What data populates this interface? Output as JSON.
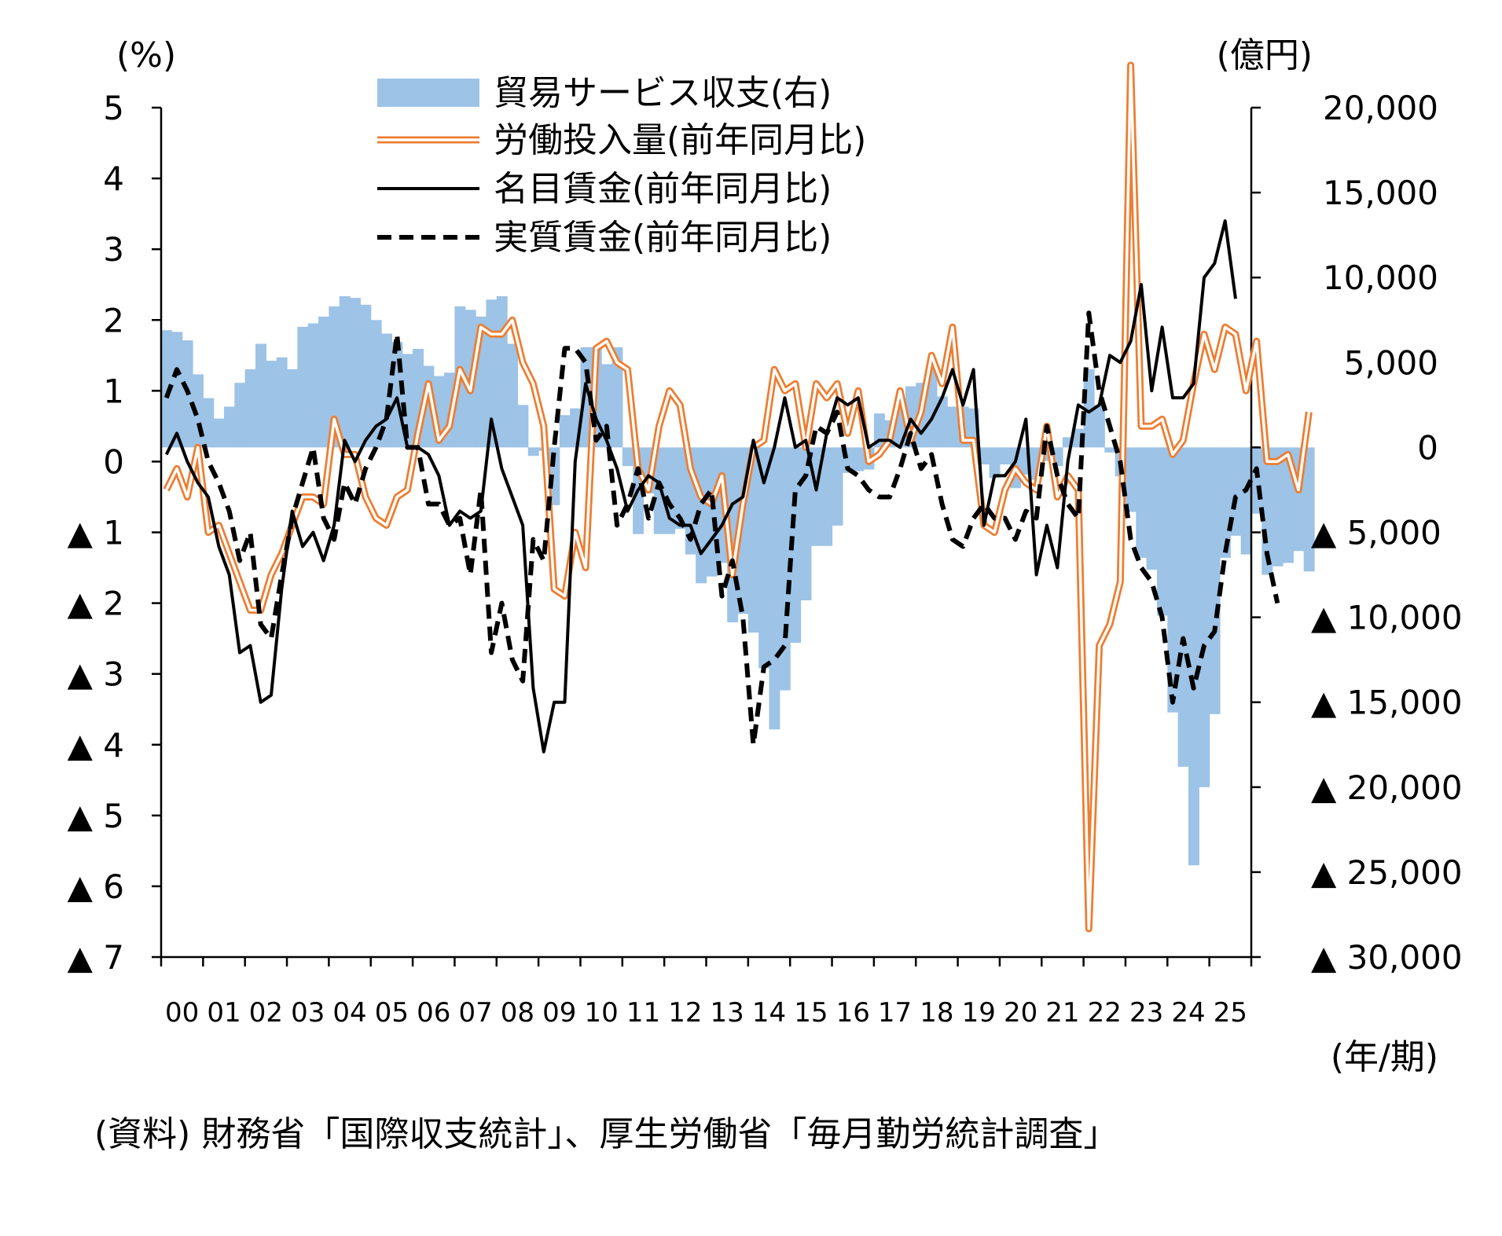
{
  "source_note": "(資料) 財務省「国際収支統計」、厚生労働省「毎月勤労統計調査」",
  "colors": {
    "bar": "#9DC3E6",
    "labor": "#ED7D31",
    "nominal": "#000000",
    "real": "#000000"
  },
  "chart_data": {
    "type": "bar+line",
    "title": "",
    "left_axis": {
      "label": "(%)",
      "ylim": [
        -7,
        5
      ],
      "ticks": [
        5,
        4,
        3,
        2,
        1,
        0,
        -1,
        -2,
        -3,
        -4,
        -5,
        -6,
        -7
      ],
      "tick_labels": [
        "5",
        "4",
        "3",
        "2",
        "1",
        "0",
        "▲ 1",
        "▲ 2",
        "▲ 3",
        "▲ 4",
        "▲ 5",
        "▲ 6",
        "▲ 7"
      ]
    },
    "right_axis": {
      "label": "(億円)",
      "ylim": [
        -30000,
        20000
      ],
      "ticks": [
        20000,
        15000,
        10000,
        5000,
        0,
        -5000,
        -10000,
        -15000,
        -20000,
        -25000,
        -30000
      ],
      "tick_labels": [
        "20,000",
        "15,000",
        "10,000",
        "5,000",
        "0",
        "▲ 5,000",
        "▲ 10,000",
        "▲ 15,000",
        "▲ 20,000",
        "▲ 25,000",
        "▲ 30,000"
      ]
    },
    "x_axis": {
      "label": "(年/期)",
      "unit": "quarter",
      "start": "2000Q1",
      "categories": [
        "00",
        "01",
        "02",
        "03",
        "04",
        "05",
        "06",
        "07",
        "08",
        "09",
        "10",
        "11",
        "12",
        "13",
        "14",
        "15",
        "16",
        "17",
        "18",
        "19",
        "20",
        "21",
        "22",
        "23",
        "24",
        "25"
      ]
    },
    "legend": {
      "position": "top-center",
      "entries": [
        "貿易サービス収支(右)",
        "労働投入量(前年同月比)",
        "名目賃金(前年同月比)",
        "実質賃金(前年同月比)"
      ]
    },
    "series": [
      {
        "name": "貿易サービス収支(右)",
        "type": "bar",
        "axis": "right",
        "values": [
          6900,
          6800,
          6300,
          4300,
          2900,
          1700,
          2400,
          3800,
          4600,
          6100,
          5100,
          5300,
          4600,
          7100,
          7300,
          7700,
          8300,
          8900,
          8800,
          8400,
          7500,
          6700,
          6200,
          5500,
          5800,
          4800,
          4200,
          4400,
          8300,
          8100,
          7700,
          8700,
          8900,
          6100,
          2500,
          -500,
          -200,
          -3400,
          1900,
          2300,
          5900,
          5900,
          4900,
          5900,
          -1100,
          -5100,
          -2700,
          -5100,
          -5100,
          -4800,
          -6300,
          -8000,
          -7600,
          -6800,
          -10300,
          -9800,
          -10900,
          -13000,
          -16600,
          -14300,
          -11500,
          -9000,
          -5800,
          -5800,
          -4600,
          -1500,
          -1400,
          -1300,
          2000,
          1600,
          2900,
          3600,
          3800,
          4600,
          3000,
          2400,
          2400,
          2300,
          -1000,
          -1800,
          -1000,
          -2400,
          -1600,
          -1900,
          -800,
          -1100,
          600,
          1100,
          4600,
          2500,
          -300,
          -1700,
          -3800,
          -6500,
          -7200,
          -9900,
          -15600,
          -18800,
          -24600,
          -20000,
          -15700,
          -6500,
          -5200,
          -6300,
          -3900,
          -7500,
          -7000,
          -6800,
          -6100,
          -7300
        ]
      },
      {
        "name": "労働投入量(前年同月比)",
        "type": "line",
        "style": "double",
        "axis": "left",
        "values": [
          -0.4,
          -0.1,
          -0.5,
          0.2,
          -1.0,
          -0.9,
          -1.3,
          -1.7,
          -2.1,
          -2.1,
          -1.6,
          -1.3,
          -0.9,
          -0.5,
          -0.5,
          -0.6,
          0.6,
          0.1,
          0.1,
          -0.5,
          -0.8,
          -0.9,
          -0.5,
          -0.4,
          0.4,
          1.1,
          0.3,
          0.5,
          1.3,
          1.0,
          1.9,
          1.8,
          1.8,
          2.0,
          1.4,
          1.1,
          0.5,
          -1.8,
          -1.9,
          -1.0,
          -1.5,
          1.6,
          1.7,
          1.4,
          1.3,
          -0.1,
          -0.4,
          0.5,
          1.0,
          0.8,
          -0.1,
          -0.5,
          -0.6,
          -0.2,
          -1.6,
          -0.6,
          0.2,
          0.3,
          1.3,
          1.0,
          1.1,
          0.2,
          1.1,
          0.9,
          1.1,
          0.4,
          1.0,
          0.0,
          0.1,
          0.3,
          1.0,
          0.3,
          0.7,
          1.5,
          1.1,
          1.9,
          0.3,
          0.3,
          -0.9,
          -1.0,
          -0.4,
          -0.1,
          -0.3,
          -0.4,
          0.5,
          -0.5,
          -0.2,
          -0.4,
          -6.6,
          -2.6,
          -2.3,
          -1.7,
          5.6,
          0.5,
          0.5,
          0.6,
          0.1,
          0.3,
          1.1,
          1.8,
          1.3,
          1.9,
          1.8,
          1.0,
          1.7,
          0.0,
          0.0,
          0.1,
          -0.4,
          0.7
        ]
      },
      {
        "name": "名目賃金(前年同月比)",
        "type": "line",
        "style": "solid",
        "axis": "left",
        "values": [
          0.1,
          0.4,
          0.0,
          -0.3,
          -0.5,
          -1.2,
          -1.6,
          -2.7,
          -2.6,
          -3.4,
          -3.3,
          -1.8,
          -0.7,
          -1.2,
          -1.0,
          -1.4,
          -0.9,
          0.3,
          0.0,
          0.3,
          0.5,
          0.6,
          0.9,
          0.2,
          0.2,
          0.1,
          -0.2,
          -0.9,
          -0.7,
          -0.8,
          -0.7,
          0.6,
          -0.1,
          -0.5,
          -0.9,
          -3.2,
          -4.1,
          -3.4,
          -3.4,
          0.0,
          1.1,
          0.6,
          0.3,
          -0.1,
          -0.7,
          -0.4,
          -0.2,
          -0.3,
          -0.8,
          -0.9,
          -0.9,
          -1.3,
          -1.1,
          -0.9,
          -0.6,
          -0.5,
          0.3,
          -0.3,
          0.2,
          0.9,
          0.2,
          0.3,
          -0.4,
          0.4,
          0.9,
          0.8,
          0.9,
          0.2,
          0.3,
          0.3,
          0.2,
          0.6,
          0.4,
          0.6,
          0.9,
          1.3,
          0.8,
          1.3,
          -0.9,
          -0.2,
          -0.2,
          0.0,
          0.6,
          -1.6,
          -0.9,
          -1.5,
          0.0,
          0.8,
          0.7,
          0.8,
          1.5,
          1.4,
          1.7,
          2.5,
          1.0,
          1.9,
          0.9,
          0.9,
          1.1,
          2.6,
          2.8,
          3.4,
          2.3
        ]
      },
      {
        "name": "実質賃金(前年同月比)",
        "type": "line",
        "style": "dashed",
        "axis": "left",
        "values": [
          0.9,
          1.3,
          1.0,
          0.6,
          0.0,
          -0.3,
          -0.7,
          -1.4,
          -1.0,
          -2.3,
          -2.5,
          -1.6,
          -0.8,
          -0.3,
          0.2,
          -0.8,
          -1.1,
          -0.3,
          -0.6,
          -0.1,
          0.2,
          0.6,
          1.8,
          0.2,
          0.2,
          -0.6,
          -0.6,
          -0.9,
          -0.8,
          -1.6,
          -0.4,
          -2.7,
          -2.0,
          -2.8,
          -3.1,
          -1.1,
          -1.4,
          0.2,
          1.6,
          1.6,
          1.4,
          0.3,
          0.5,
          -0.9,
          -0.6,
          -0.1,
          -0.8,
          -0.3,
          -0.6,
          -0.8,
          -1.1,
          -0.6,
          -0.4,
          -1.9,
          -1.4,
          -2.2,
          -4.0,
          -2.9,
          -2.8,
          -2.6,
          -0.4,
          -0.2,
          0.5,
          0.4,
          0.7,
          -0.1,
          -0.2,
          -0.4,
          -0.5,
          -0.5,
          -0.1,
          0.4,
          -0.1,
          0.1,
          -0.6,
          -1.1,
          -1.2,
          -0.8,
          -0.6,
          -0.8,
          -0.8,
          -1.1,
          -0.7,
          -0.8,
          0.5,
          -0.2,
          -0.6,
          -0.8,
          2.1,
          1.0,
          0.5,
          0.0,
          -1.1,
          -1.5,
          -1.7,
          -2.2,
          -3.4,
          -2.5,
          -3.2,
          -2.6,
          -2.4,
          -1.3,
          -0.5,
          -0.4,
          -0.1,
          -1.3,
          -2.0
        ]
      }
    ]
  }
}
